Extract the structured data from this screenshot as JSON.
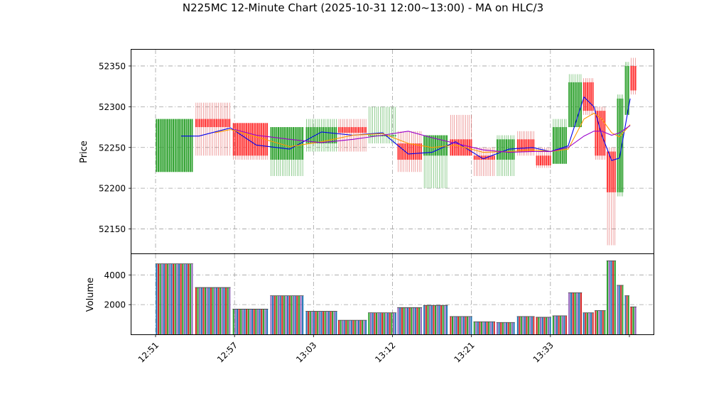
{
  "chart_data": {
    "type": "candlestick",
    "title": "N225MC 12-Minute Chart (2025-10-31 12:00~13:00) - MA on HLC/3",
    "price_panel": {
      "ylabel": "Price",
      "yticks": [
        52150,
        52200,
        52250,
        52300,
        52350
      ],
      "ylim": [
        52120,
        52370
      ],
      "grid": true
    },
    "volume_panel": {
      "ylabel": "Volume",
      "yticks": [
        2000,
        4000
      ],
      "ylim": [
        0,
        5400
      ],
      "grid": true
    },
    "xtick_labels": [
      "12:51",
      "12:57",
      "13:03",
      "13:12",
      "13:21",
      "13:33"
    ],
    "xtick_positions": [
      0,
      2,
      4,
      6,
      8,
      10
    ],
    "candles": [
      {
        "open": 52220,
        "high": 52285,
        "low": 52220,
        "close": 52285,
        "volume": 4750
      },
      {
        "open": 52285,
        "high": 52305,
        "low": 52240,
        "close": 52275,
        "volume": 3150
      },
      {
        "open": 52280,
        "high": 52280,
        "low": 52235,
        "close": 52240,
        "volume": 1700
      },
      {
        "open": 52235,
        "high": 52275,
        "low": 52215,
        "close": 52275,
        "volume": 2600
      },
      {
        "open": 52255,
        "high": 52285,
        "low": 52245,
        "close": 52275,
        "volume": 1550
      },
      {
        "open": 52275,
        "high": 52285,
        "low": 52245,
        "close": 52268,
        "volume": 950
      },
      {
        "open": 52265,
        "high": 52300,
        "low": 52255,
        "close": 52265,
        "volume": 1450
      },
      {
        "open": 52255,
        "high": 52270,
        "low": 52220,
        "close": 52235,
        "volume": 1800
      },
      {
        "open": 52240,
        "high": 52265,
        "low": 52200,
        "close": 52265,
        "volume": 1950
      },
      {
        "open": 52260,
        "high": 52290,
        "low": 52240,
        "close": 52240,
        "volume": 1200
      },
      {
        "open": 52240,
        "high": 52250,
        "low": 52215,
        "close": 52235,
        "volume": 850
      },
      {
        "open": 52235,
        "high": 52265,
        "low": 52215,
        "close": 52260,
        "volume": 800
      },
      {
        "open": 52260,
        "high": 52270,
        "low": 52240,
        "close": 52245,
        "volume": 1200
      },
      {
        "open": 52240,
        "high": 52250,
        "low": 52225,
        "close": 52228,
        "volume": 1150
      },
      {
        "open": 52230,
        "high": 52285,
        "low": 52230,
        "close": 52275,
        "volume": 1250
      },
      {
        "open": 52275,
        "high": 52340,
        "low": 52275,
        "close": 52330,
        "volume": 2800
      },
      {
        "open": 52330,
        "high": 52335,
        "low": 52290,
        "close": 52295,
        "volume": 1450
      },
      {
        "open": 52295,
        "high": 52300,
        "low": 52235,
        "close": 52240,
        "volume": 1600
      },
      {
        "open": 52245,
        "high": 52250,
        "low": 52130,
        "close": 52195,
        "volume": 4950
      },
      {
        "open": 52195,
        "high": 52315,
        "low": 52190,
        "close": 52310,
        "volume": 3300
      },
      {
        "open": 52290,
        "high": 52355,
        "low": 52290,
        "close": 52350,
        "volume": 2600
      },
      {
        "open": 52350,
        "high": 52360,
        "low": 52315,
        "close": 52320,
        "volume": 1850
      }
    ],
    "candle_spans": [
      [
        0.0,
        0.95
      ],
      [
        1.0,
        1.9
      ],
      [
        1.95,
        2.85
      ],
      [
        2.9,
        3.75
      ],
      [
        3.8,
        4.6
      ],
      [
        4.62,
        5.35
      ],
      [
        5.38,
        6.1
      ],
      [
        6.12,
        6.75
      ],
      [
        6.78,
        7.4
      ],
      [
        7.45,
        8.02
      ],
      [
        8.05,
        8.6
      ],
      [
        8.63,
        9.1
      ],
      [
        9.15,
        9.6
      ],
      [
        9.63,
        10.02
      ],
      [
        10.05,
        10.42
      ],
      [
        10.45,
        10.8
      ],
      [
        10.82,
        11.1
      ],
      [
        11.12,
        11.4
      ],
      [
        11.42,
        11.66
      ],
      [
        11.68,
        11.85
      ],
      [
        11.88,
        12.0
      ],
      [
        12.02,
        12.18
      ]
    ],
    "series": [
      {
        "color": "#0000ee",
        "x": [
          0.65,
          1.1,
          1.9,
          2.55,
          3.4,
          4.2,
          5.0,
          5.75,
          6.4,
          7.0,
          7.6,
          8.3,
          8.95,
          9.55,
          10.0,
          10.45,
          10.85,
          11.1,
          11.3,
          11.55,
          11.75,
          12.02
        ],
        "y": [
          52264,
          52264,
          52274,
          52253,
          52248,
          52269,
          52265,
          52268,
          52242,
          52244,
          52257,
          52236,
          52248,
          52250,
          52245,
          52252,
          52312,
          52300,
          52265,
          52234,
          52237,
          52310
        ]
      },
      {
        "color": "#ff9900",
        "x": [
          1.5,
          1.9,
          2.55,
          3.4,
          4.2,
          5.0,
          5.75,
          6.4,
          7.0,
          7.6,
          8.3,
          8.95,
          9.55,
          10.0,
          10.45,
          10.85,
          11.1,
          11.3,
          11.55,
          11.75,
          12.02
        ],
        "y": [
          52268,
          52272,
          52263,
          52251,
          52257,
          52265,
          52267,
          52255,
          52250,
          52253,
          52244,
          52245,
          52247,
          52245,
          52248,
          52285,
          52292,
          52285,
          52268,
          52263,
          52278
        ]
      },
      {
        "color": "#9900cc",
        "x": [
          2.0,
          2.55,
          3.4,
          4.2,
          5.0,
          5.75,
          6.4,
          7.0,
          7.6,
          8.3,
          8.95,
          9.55,
          10.0,
          10.45,
          10.85,
          11.1,
          11.3,
          11.55,
          11.75,
          12.02
        ],
        "y": [
          52272,
          52265,
          52260,
          52256,
          52260,
          52265,
          52270,
          52262,
          52255,
          52247,
          52244,
          52245,
          52245,
          52250,
          52264,
          52270,
          52270,
          52265,
          52268,
          52277
        ]
      }
    ]
  }
}
